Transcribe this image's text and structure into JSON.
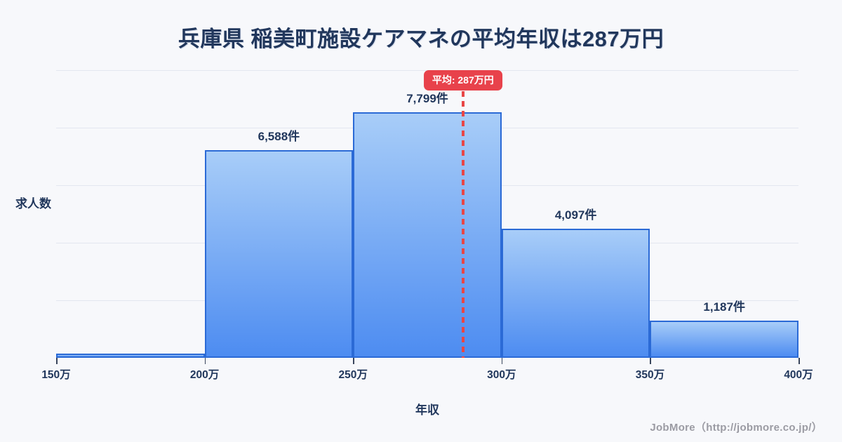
{
  "chart_data": {
    "type": "bar",
    "variant": "histogram",
    "title": "兵庫県 稲美町施設ケアマネの平均年収は287万円",
    "xlabel": "年収",
    "ylabel": "求人数",
    "x_tick_labels": [
      "150万",
      "200万",
      "250万",
      "300万",
      "350万",
      "400万"
    ],
    "xlim": [
      150,
      400
    ],
    "y_tick_labels": [],
    "grid": "horizontal",
    "legend": false,
    "bins": [
      {
        "range": "150万-200万",
        "value": 110,
        "label": "",
        "estimated": true
      },
      {
        "range": "200万-250万",
        "value": 6588,
        "label": "6,588件",
        "estimated": false
      },
      {
        "range": "250万-300万",
        "value": 7799,
        "label": "7,799件",
        "estimated": false
      },
      {
        "range": "300万-350万",
        "value": 4097,
        "label": "4,097件",
        "estimated": false
      },
      {
        "range": "350万-400万",
        "value": 1187,
        "label": "1,187件",
        "estimated": false
      }
    ],
    "average_marker": {
      "value": 287,
      "label": "平均: 287万円"
    }
  },
  "footer": {
    "credit": "JobMore（http://jobmore.co.jp/）"
  },
  "colors": {
    "background": "#f7f8fb",
    "text": "#21375c",
    "bar_fill_top": "#a8cdf8",
    "bar_fill_bottom": "#4d8cf1",
    "bar_border": "#2b6ad6",
    "gridline": "#e3e7f0",
    "average_accent": "#e8424b",
    "credit_text": "#9b9ba3"
  }
}
